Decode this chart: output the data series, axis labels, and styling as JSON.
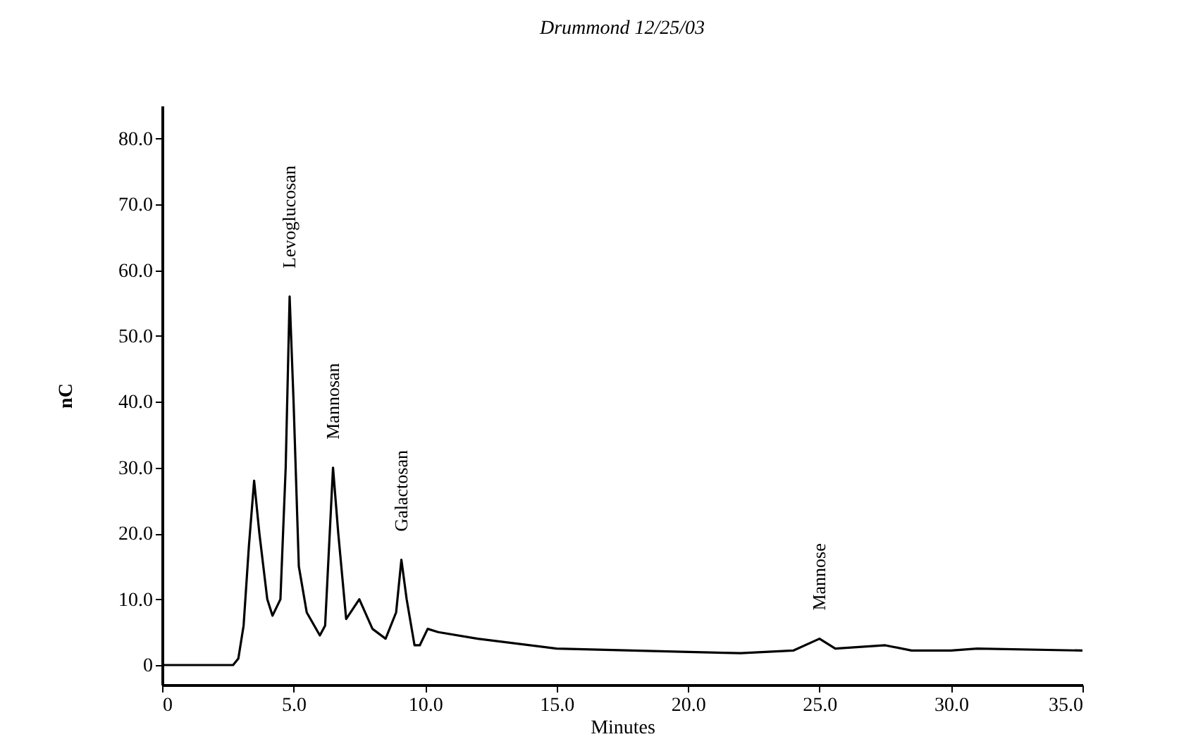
{
  "chart_data": {
    "type": "line",
    "title": "Drummond 12/25/03",
    "xlabel": "Minutes",
    "ylabel": "nC",
    "x": [
      0,
      2.7,
      2.9,
      3.1,
      3.3,
      3.5,
      3.7,
      4.0,
      4.2,
      4.5,
      4.7,
      4.85,
      5.0,
      5.2,
      5.5,
      6.0,
      6.2,
      6.5,
      6.7,
      7.0,
      7.5,
      8.0,
      8.5,
      8.9,
      9.1,
      9.3,
      9.6,
      9.8,
      10.1,
      10.5,
      12,
      15,
      20,
      22,
      24,
      25,
      25.6,
      27.5,
      28.5,
      30,
      31,
      35
    ],
    "series": [
      {
        "color": "#000000",
        "values": [
          0,
          0,
          1,
          6,
          18,
          28,
          20,
          10,
          7.5,
          10,
          30,
          56,
          40,
          15,
          8,
          4.5,
          6,
          30,
          20,
          7,
          10,
          5.5,
          4,
          8,
          16,
          10,
          3,
          3,
          5.5,
          5,
          4,
          2.5,
          2,
          1.8,
          2.2,
          4,
          2.5,
          3,
          2.2,
          2.2,
          2.5,
          2.2
        ]
      }
    ],
    "xlim": [
      0,
      35
    ],
    "ylim": [
      -3,
      85
    ],
    "xticks": [
      0,
      {
        "value": 5,
        "label": "5.0"
      },
      {
        "value": 10,
        "label": "10.0"
      },
      {
        "value": 15,
        "label": "15.0"
      },
      {
        "value": 20,
        "label": "20.0"
      },
      {
        "value": 25,
        "label": "25.0"
      },
      {
        "value": 30,
        "label": "30.0"
      },
      {
        "value": 35,
        "label": "35.0"
      }
    ],
    "yticks": [
      0,
      {
        "value": 10,
        "label": "10.0"
      },
      {
        "value": 20,
        "label": "20.0"
      },
      {
        "value": 30,
        "label": "30.0"
      },
      {
        "value": 40,
        "label": "40.0"
      },
      {
        "value": 50,
        "label": "50.0"
      },
      {
        "value": 60,
        "label": "60.0"
      },
      {
        "value": 70,
        "label": "70.0"
      },
      {
        "value": 80,
        "label": "80.0"
      }
    ],
    "annotations": [
      {
        "text": "Levoglucosan",
        "x": 4.85,
        "y": 56
      },
      {
        "text": "Mannosan",
        "x": 6.5,
        "y": 30
      },
      {
        "text": "Galactosan",
        "x": 9.1,
        "y": 16
      },
      {
        "text": "Mannose",
        "x": 25,
        "y": 4
      }
    ],
    "grid": false,
    "legend": false,
    "marker": "none",
    "line_style": "solid"
  }
}
